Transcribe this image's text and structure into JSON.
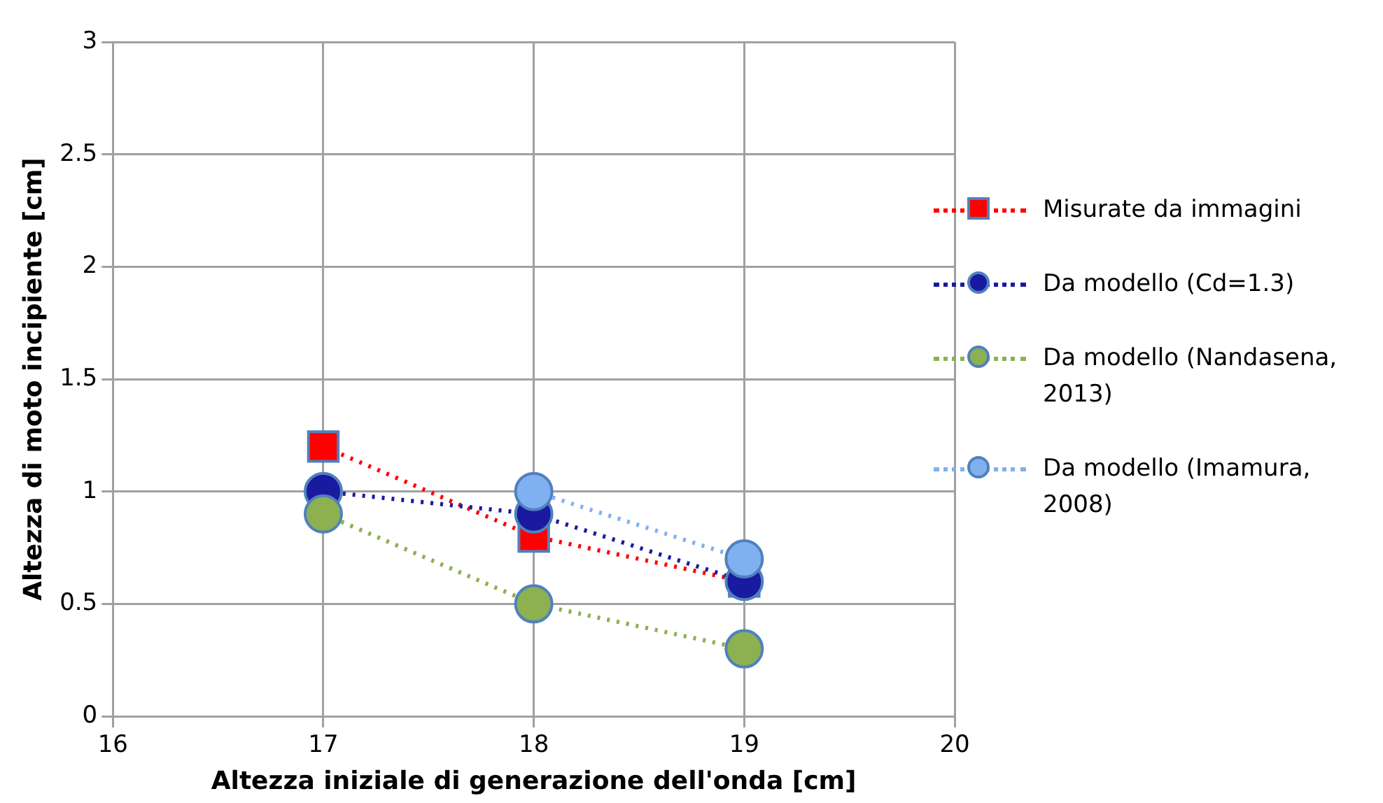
{
  "chart_data": {
    "type": "line",
    "xlabel": "Altezza iniziale di generazione dell'onda [cm]",
    "ylabel": "Altezza di moto incipiente [cm]",
    "x": [
      17,
      18,
      19
    ],
    "xlim": [
      16,
      20
    ],
    "xticks": [
      16,
      17,
      18,
      19,
      20
    ],
    "ylim": [
      0,
      3
    ],
    "yticks": [
      0,
      0.5,
      1,
      1.5,
      2,
      2.5,
      3
    ],
    "grid": true,
    "legend": "right",
    "line_style": "dotted",
    "series": [
      {
        "name": "Misurate da immagini",
        "color": "#ff0000",
        "marker": "square",
        "values": [
          1.2,
          0.8,
          0.6
        ]
      },
      {
        "name": "Da modello (Cd=1.3)",
        "color": "#1a1aa0",
        "marker": "circle",
        "values": [
          1.0,
          0.9,
          0.6
        ]
      },
      {
        "name": "Da modello (Nandasena, 2013)",
        "color": "#8db050",
        "marker": "circle",
        "values": [
          0.9,
          0.5,
          0.3
        ]
      },
      {
        "name": "Da modello (Imamura, 2008)",
        "color": "#80b0f0",
        "marker": "circle",
        "values": [
          null,
          1.0,
          0.7
        ]
      }
    ]
  }
}
